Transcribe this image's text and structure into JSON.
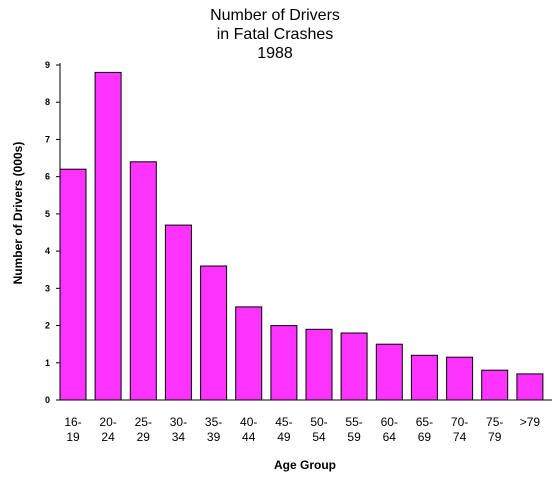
{
  "chart_data": {
    "type": "bar",
    "title_lines": [
      "Number of Drivers",
      "in Fatal Crashes",
      "1988"
    ],
    "xlabel": "Age Group",
    "ylabel": "Number of Drivers (000s)",
    "ylim": [
      0,
      9
    ],
    "yticks": [
      0,
      1,
      2,
      3,
      4,
      5,
      6,
      7,
      8,
      9
    ],
    "categories": [
      [
        "16-",
        "19"
      ],
      [
        "20-",
        "24"
      ],
      [
        "25-",
        "29"
      ],
      [
        "30-",
        "34"
      ],
      [
        "35-",
        "39"
      ],
      [
        "40-",
        "44"
      ],
      [
        "45-",
        "49"
      ],
      [
        "50-",
        "54"
      ],
      [
        "55-",
        "59"
      ],
      [
        "60-",
        "64"
      ],
      [
        "65-",
        "69"
      ],
      [
        "70-",
        "74"
      ],
      [
        "75-",
        "79"
      ],
      [
        ">79"
      ]
    ],
    "values": [
      6.2,
      8.8,
      6.4,
      4.7,
      3.6,
      2.5,
      2.0,
      1.9,
      1.8,
      1.5,
      1.2,
      1.15,
      0.8,
      0.7
    ],
    "bar_color": "#ff33ff",
    "grid": false,
    "legend": "none"
  }
}
